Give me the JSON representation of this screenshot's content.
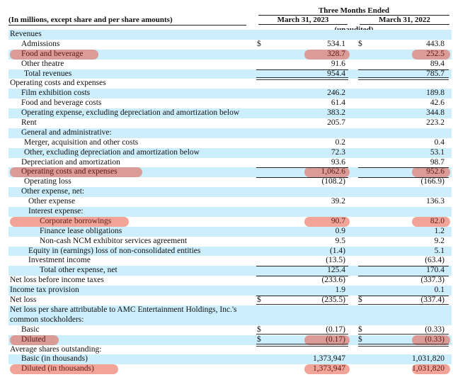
{
  "header": {
    "units_label": "(In millions, except share and per share amounts)",
    "period_label": "Three Months Ended",
    "col1": "March 31, 2023",
    "col2": "March 31, 2022",
    "audit_status": "(unaudited)"
  },
  "highlight_color": "#e85a46",
  "shading_color": "#cdeefc",
  "rows": [
    {
      "label": "Revenues",
      "indent": 0
    },
    {
      "label": "Admissions",
      "indent": 1,
      "dollar": true,
      "v1": "534.1",
      "v2": "443.8"
    },
    {
      "label": "Food and beverage",
      "indent": 1,
      "v1": "328.7",
      "v2": "252.5",
      "highlight": true
    },
    {
      "label": "Other theatre",
      "indent": 1,
      "v1": "91.6",
      "v2": "89.4"
    },
    {
      "label": "Total revenues",
      "indent": 2,
      "v1": "954.4",
      "v2": "785.7",
      "total": true,
      "double": true
    },
    {
      "label": "Operating costs and expenses",
      "indent": 0
    },
    {
      "label": "Film exhibition costs",
      "indent": 1,
      "v1": "246.2",
      "v2": "189.8"
    },
    {
      "label": "Food and beverage costs",
      "indent": 1,
      "v1": "61.4",
      "v2": "42.6"
    },
    {
      "label": "Operating expense, excluding depreciation and amortization below",
      "indent": 1,
      "v1": "383.2",
      "v2": "344.8"
    },
    {
      "label": "Rent",
      "indent": 1,
      "v1": "205.7",
      "v2": "223.2"
    },
    {
      "label": "General and administrative:",
      "indent": 1
    },
    {
      "label": "Merger, acquisition and other costs",
      "indent": 2,
      "v1": "0.2",
      "v2": "0.4"
    },
    {
      "label": "Other, excluding depreciation and amortization below",
      "indent": 2,
      "v1": "72.3",
      "v2": "53.1"
    },
    {
      "label": "Depreciation and amortization",
      "indent": 1,
      "v1": "93.6",
      "v2": "98.7"
    },
    {
      "label": "Operating costs and expenses",
      "indent": 1,
      "v1": "1,062.6",
      "v2": "952.6",
      "highlight": true,
      "total": true
    },
    {
      "label": "Operating loss",
      "indent": 2,
      "v1": "(108.2)",
      "v2": "(166.9)",
      "total": true
    },
    {
      "label": "Other expense, net:",
      "indent": 1
    },
    {
      "label": "Other expense",
      "indent": 3,
      "v1": "39.2",
      "v2": "136.3"
    },
    {
      "label": "Interest expense:",
      "indent": 3
    },
    {
      "label": "Corporate borrowings",
      "indent": 4,
      "v1": "90.7",
      "v2": "82.0",
      "highlight": true
    },
    {
      "label": "Finance lease obligations",
      "indent": 4,
      "v1": "0.9",
      "v2": "1.2"
    },
    {
      "label": "Non-cash NCM exhibitor services agreement",
      "indent": 4,
      "v1": "9.5",
      "v2": "9.2"
    },
    {
      "label": "Equity in (earnings) loss of non-consolidated entities",
      "indent": 3,
      "v1": "(1.4)",
      "v2": "5.1"
    },
    {
      "label": "Investment income",
      "indent": 3,
      "v1": "(13.5)",
      "v2": "(63.4)"
    },
    {
      "label": "Total other expense, net",
      "indent": 4,
      "v1": "125.4",
      "v2": "170.4",
      "total": true
    },
    {
      "label": "Net loss before income taxes",
      "indent": 0,
      "v1": "(233.6)",
      "v2": "(337.3)",
      "total": true
    },
    {
      "label": "Income tax provision",
      "indent": 0,
      "v1": "1.9",
      "v2": "0.1"
    },
    {
      "label": "Net loss",
      "indent": 0,
      "dollar": true,
      "v1": "(235.5)",
      "v2": "(337.4)",
      "total": true,
      "double": true
    },
    {
      "label": "Net loss per share attributable to AMC Entertainment Holdings, Inc.'s common stockholders:",
      "indent": 0,
      "two": true
    },
    {
      "label": "Basic",
      "indent": 1,
      "dollar": true,
      "v1": "(0.17)",
      "v2": "(0.33)",
      "double": true
    },
    {
      "label": "Diluted",
      "indent": 1,
      "dollar": true,
      "v1": "(0.17)",
      "v2": "(0.33)",
      "highlight": true,
      "double": true
    },
    {
      "label": "Average shares outstanding:",
      "indent": 0
    },
    {
      "label": "Basic (in thousands)",
      "indent": 1,
      "v1": "1,373,947",
      "v2": "1,031,820"
    },
    {
      "label": "Diluted (in thousands)",
      "indent": 1,
      "v1": "1,373,947",
      "v2": "1,031,820",
      "highlight": true
    }
  ]
}
